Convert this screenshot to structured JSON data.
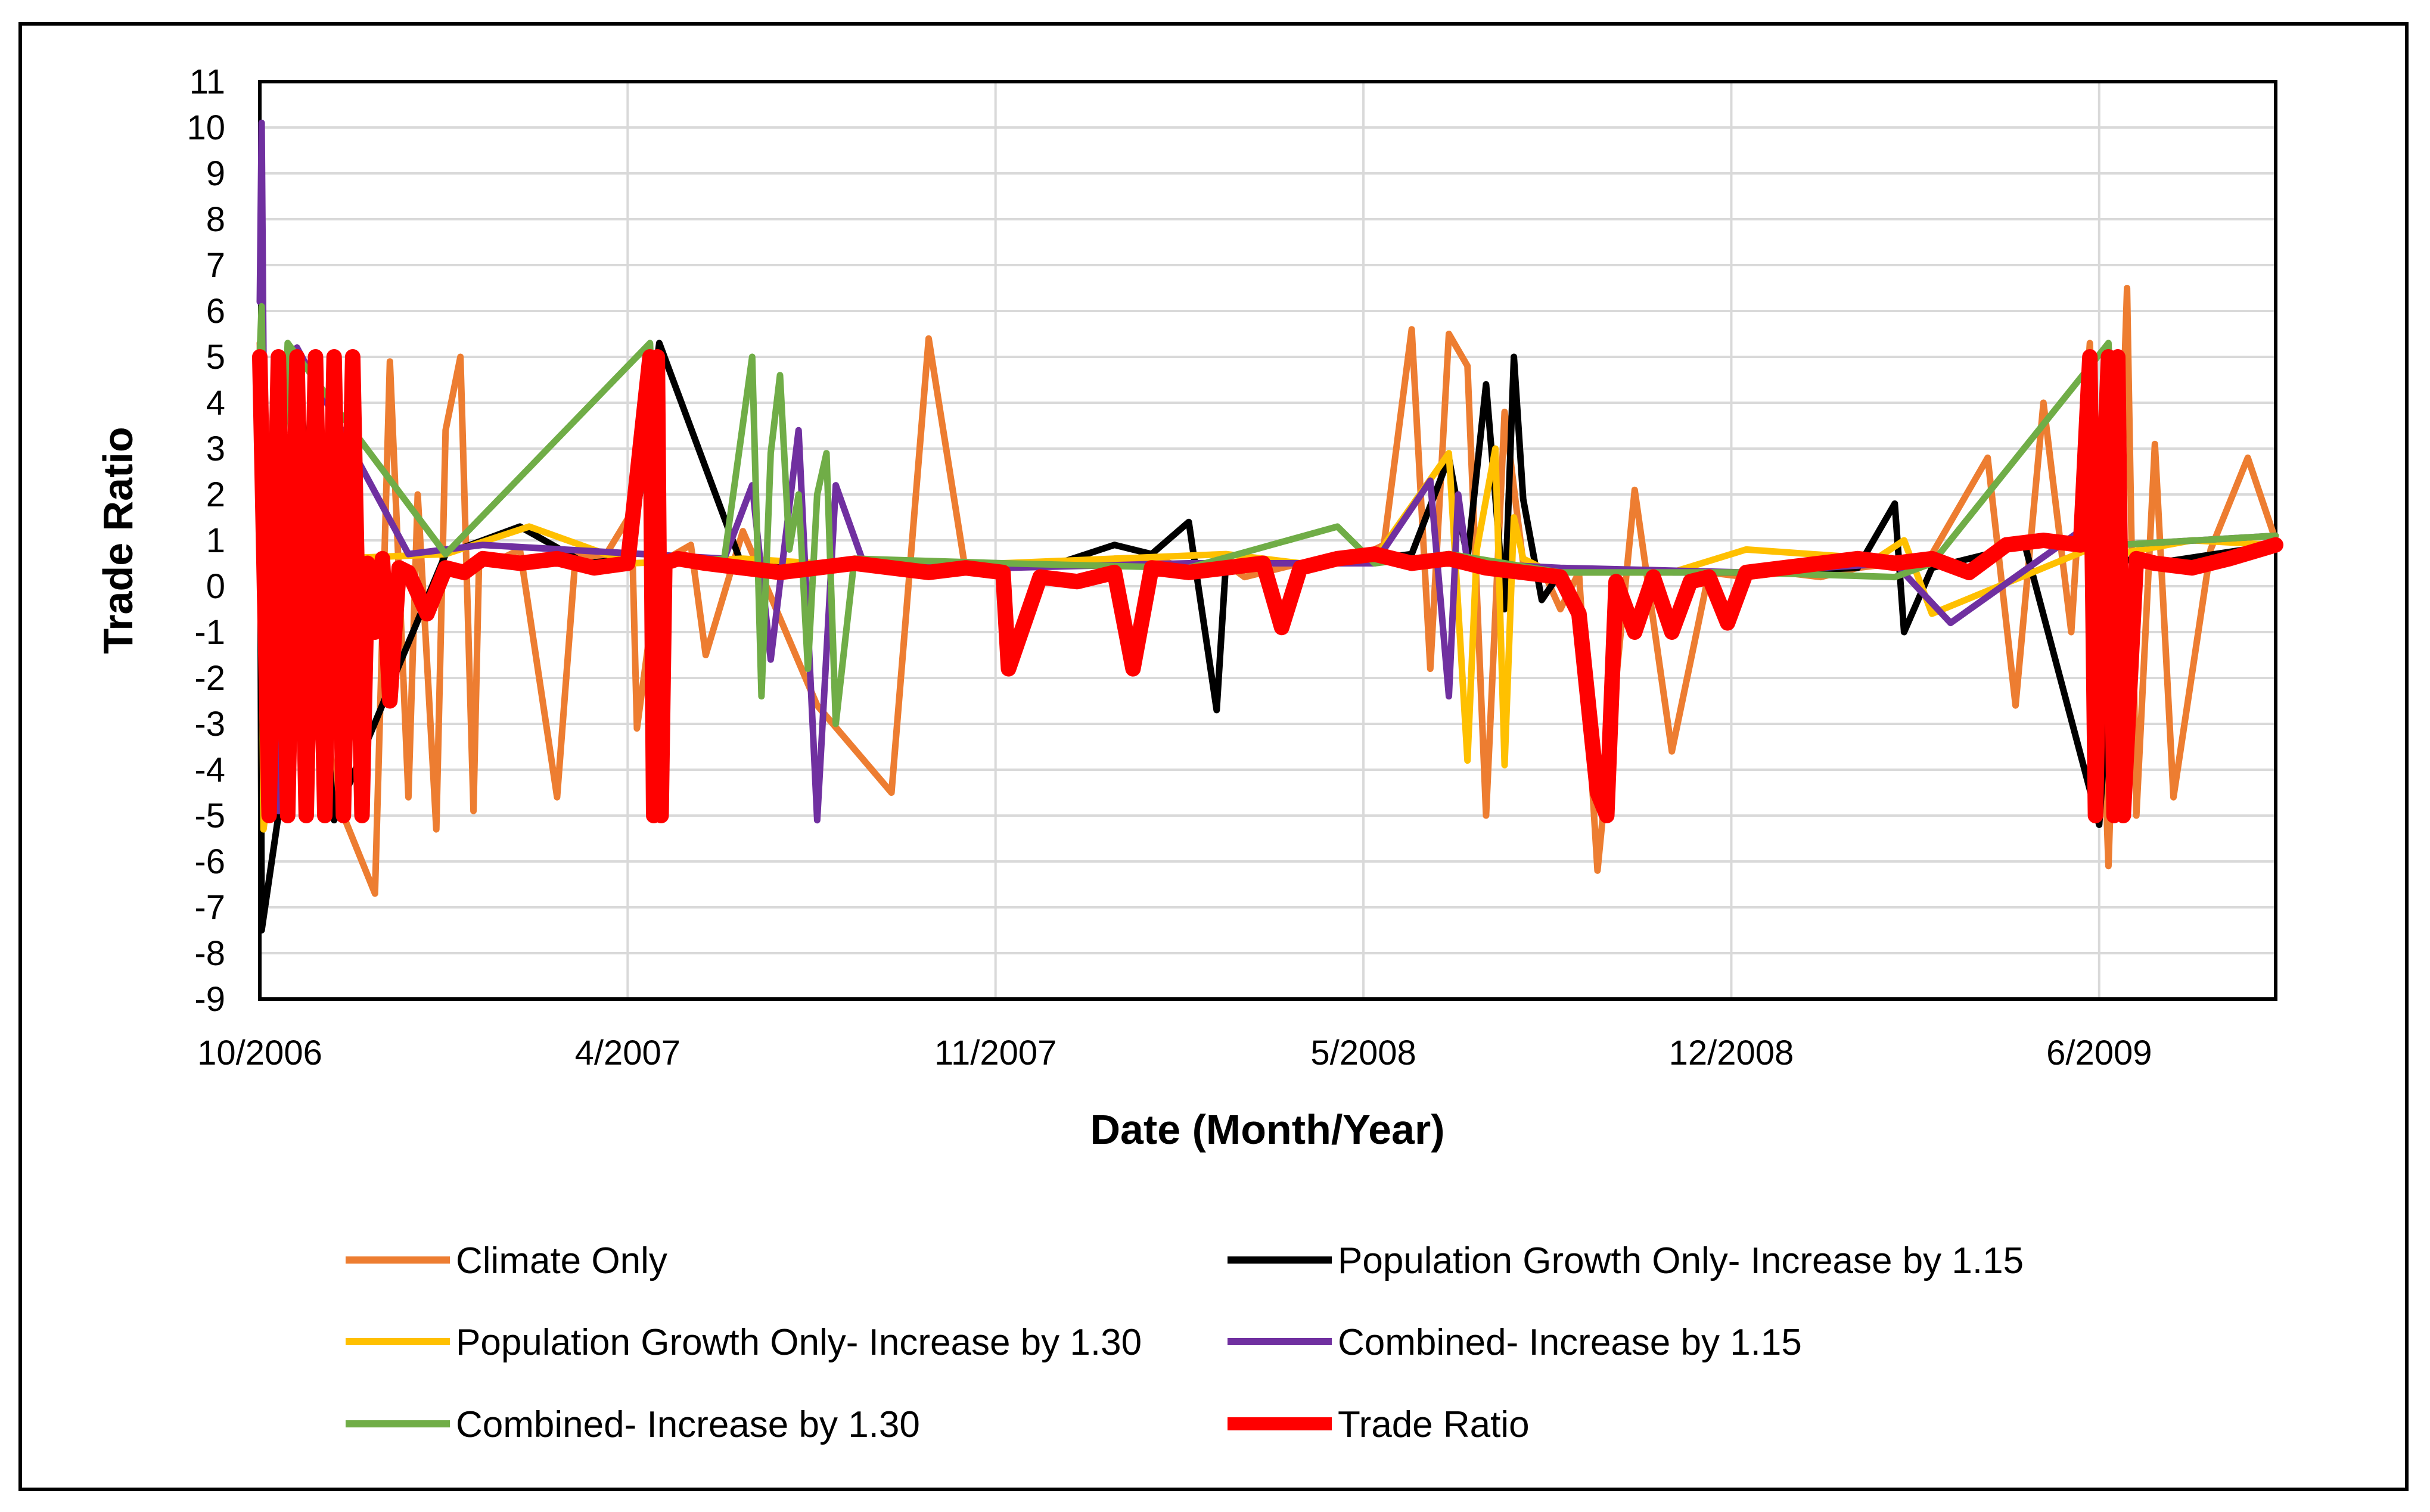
{
  "chart_data": {
    "type": "line",
    "title": "",
    "xlabel": "Date (Month/Year)",
    "ylabel": "Trade Ratio",
    "ylim": [
      -9,
      11
    ],
    "yticks": [
      11,
      10,
      9,
      8,
      7,
      6,
      5,
      4,
      3,
      2,
      1,
      0,
      -1,
      -2,
      -3,
      -4,
      -5,
      -6,
      -7,
      -8,
      -9
    ],
    "xlim": [
      0,
      1085
    ],
    "x_unit": "days since 10/2006",
    "x_ticks": [
      {
        "x": 0,
        "label": "10/2006"
      },
      {
        "x": 198,
        "label": "4/2007"
      },
      {
        "x": 396,
        "label": "11/2007"
      },
      {
        "x": 594,
        "label": "5/2008"
      },
      {
        "x": 792,
        "label": "12/2008"
      },
      {
        "x": 990,
        "label": "6/2009"
      }
    ],
    "grid": true,
    "legend_position": "bottom",
    "series": [
      {
        "name": "Climate Only",
        "color": "#ED7D31",
        "x": [
          0,
          8,
          20,
          40,
          62,
          70,
          80,
          85,
          95,
          100,
          108,
          115,
          118,
          130,
          140,
          160,
          170,
          185,
          200,
          203,
          215,
          232,
          240,
          260,
          300,
          340,
          360,
          380,
          400,
          430,
          460,
          480,
          500,
          520,
          530,
          560,
          590,
          605,
          620,
          630,
          640,
          650,
          660,
          670,
          680,
          690,
          700,
          710,
          720,
          740,
          760,
          780,
          800,
          820,
          840,
          860,
          880,
          900,
          930,
          945,
          960,
          975,
          985,
          995,
          1005,
          1010,
          1020,
          1030,
          1050,
          1070,
          1085
        ],
        "y": [
          5.3,
          -5,
          4.9,
          -4.5,
          -6.7,
          4.9,
          -4.6,
          2.0,
          -5.3,
          3.4,
          5.0,
          -4.9,
          0.5,
          0.6,
          0.8,
          -4.6,
          0.7,
          0.6,
          1.6,
          -3.1,
          0.5,
          0.9,
          -1.5,
          1.2,
          -2.6,
          -4.5,
          5.4,
          0.3,
          0.4,
          0.5,
          0.6,
          0.6,
          0.4,
          0.5,
          0.2,
          0.5,
          0.6,
          0.9,
          5.6,
          -1.8,
          5.5,
          4.8,
          -5.0,
          3.8,
          0.5,
          0.4,
          -0.5,
          0.3,
          -6.2,
          2.1,
          -3.6,
          0.3,
          0.2,
          0.3,
          0.2,
          0.4,
          0.5,
          0.7,
          2.8,
          -2.6,
          4.0,
          -1.0,
          5.3,
          -6.1,
          6.5,
          -5.0,
          3.1,
          -4.6,
          0.8,
          2.8,
          1.0
        ]
      },
      {
        "name": "Population Growth Only- Increase by 1.15",
        "color": "#000000",
        "x": [
          0,
          1,
          10,
          20,
          40,
          100,
          140,
          175,
          200,
          215,
          260,
          300,
          360,
          430,
          460,
          480,
          500,
          515,
          520,
          560,
          600,
          620,
          640,
          650,
          660,
          670,
          675,
          680,
          690,
          700,
          720,
          760,
          800,
          860,
          880,
          885,
          900,
          950,
          990,
          1000,
          1020,
          1085
        ],
        "y": [
          5.0,
          -7.5,
          -5.0,
          5.2,
          -5.1,
          0.7,
          1.3,
          0.5,
          0.6,
          5.3,
          0.4,
          0.5,
          0.4,
          0.5,
          0.9,
          0.7,
          1.4,
          -2.7,
          0.5,
          0.5,
          0.6,
          0.7,
          2.8,
          0.6,
          4.4,
          -0.5,
          5.0,
          1.9,
          -0.3,
          0.3,
          0.3,
          0.3,
          0.3,
          0.4,
          1.8,
          -1.0,
          0.4,
          0.9,
          -5.2,
          0.6,
          0.5,
          0.9
        ]
      },
      {
        "name": "Population Growth Only- Increase by 1.30",
        "color": "#FFC000",
        "x": [
          0,
          2,
          20,
          40,
          100,
          145,
          200,
          260,
          340,
          400,
          460,
          520,
          560,
          600,
          640,
          650,
          655,
          665,
          670,
          675,
          680,
          690,
          700,
          760,
          800,
          870,
          885,
          900,
          990,
          1000,
          1040,
          1085
        ],
        "y": [
          5.1,
          -5.3,
          0.5,
          0.6,
          0.7,
          1.3,
          0.5,
          0.6,
          0.4,
          0.5,
          0.6,
          0.7,
          0.5,
          0.6,
          2.9,
          -3.8,
          0.8,
          3.0,
          -3.9,
          1.5,
          0.6,
          0.4,
          0.3,
          0.3,
          0.8,
          0.6,
          1.0,
          -0.6,
          0.9,
          0.7,
          1.0,
          0.9
        ]
      },
      {
        "name": "Combined- Increase by 1.15",
        "color": "#7030A0",
        "x": [
          0,
          1,
          2,
          10,
          20,
          80,
          120,
          250,
          265,
          275,
          290,
          300,
          310,
          325,
          400,
          500,
          600,
          630,
          640,
          645,
          650,
          700,
          800,
          880,
          910,
          990,
          1000,
          1085
        ],
        "y": [
          6.2,
          10.1,
          4.9,
          -4.9,
          5.2,
          0.7,
          0.9,
          0.6,
          2.2,
          -1.6,
          3.4,
          -5.1,
          2.2,
          0.5,
          0.4,
          0.5,
          0.5,
          2.3,
          -2.4,
          2.0,
          0.5,
          0.4,
          0.3,
          0.5,
          -0.8,
          1.5,
          0.9,
          1.1
        ]
      },
      {
        "name": "Combined- Increase by 1.30",
        "color": "#70AD47",
        "x": [
          0,
          1,
          5,
          15,
          100,
          210,
          215,
          250,
          265,
          270,
          275,
          280,
          285,
          290,
          295,
          300,
          305,
          310,
          320,
          400,
          500,
          580,
          600,
          640,
          700,
          800,
          880,
          900,
          995,
          1000,
          1085
        ],
        "y": [
          5.1,
          6.1,
          -5.0,
          5.3,
          0.7,
          5.3,
          0.5,
          0.6,
          5.0,
          -2.4,
          2.9,
          4.6,
          0.8,
          2.0,
          -1.8,
          2.0,
          2.9,
          -3.0,
          0.6,
          0.5,
          0.4,
          1.3,
          0.5,
          0.7,
          0.3,
          0.3,
          0.2,
          0.5,
          5.3,
          0.9,
          1.1
        ]
      },
      {
        "name": "Trade Ratio",
        "color": "#FF0000",
        "x": [
          0,
          5,
          10,
          15,
          20,
          25,
          30,
          35,
          40,
          45,
          50,
          55,
          58,
          62,
          66,
          70,
          75,
          80,
          90,
          100,
          110,
          120,
          140,
          160,
          180,
          198,
          210,
          212,
          214,
          216,
          218,
          225,
          240,
          260,
          280,
          300,
          320,
          340,
          360,
          380,
          400,
          403,
          420,
          440,
          460,
          470,
          480,
          500,
          520,
          540,
          550,
          560,
          580,
          600,
          620,
          640,
          660,
          680,
          700,
          710,
          720,
          725,
          730,
          740,
          750,
          760,
          770,
          780,
          790,
          800,
          820,
          840,
          860,
          880,
          900,
          920,
          940,
          960,
          980,
          985,
          988,
          991,
          995,
          998,
          1000,
          1003,
          1010,
          1020,
          1040,
          1060,
          1085
        ],
        "y": [
          5.0,
          -5.0,
          5.0,
          -5.0,
          5.0,
          -5.0,
          5.0,
          -5.0,
          5.0,
          -5.0,
          5.0,
          -5.0,
          0.5,
          -1.0,
          0.6,
          -2.5,
          0.4,
          0.3,
          -0.6,
          0.4,
          0.3,
          0.6,
          0.5,
          0.6,
          0.4,
          0.5,
          5.0,
          -5.0,
          5.0,
          -5.0,
          0.5,
          0.6,
          0.5,
          0.4,
          0.3,
          0.4,
          0.5,
          0.4,
          0.3,
          0.4,
          0.3,
          -1.8,
          0.2,
          0.1,
          0.3,
          -1.8,
          0.4,
          0.3,
          0.4,
          0.5,
          -0.9,
          0.4,
          0.6,
          0.7,
          0.5,
          0.6,
          0.4,
          0.3,
          0.2,
          -0.6,
          -4.5,
          -5.0,
          0.1,
          -1.0,
          0.2,
          -1.0,
          0.1,
          0.2,
          -0.8,
          0.3,
          0.4,
          0.5,
          0.6,
          0.5,
          0.6,
          0.3,
          0.9,
          1.0,
          0.9,
          5.0,
          -5.0,
          0.8,
          5.0,
          -5.0,
          5.0,
          -5.0,
          0.6,
          0.5,
          0.4,
          0.6,
          0.9
        ]
      }
    ]
  }
}
